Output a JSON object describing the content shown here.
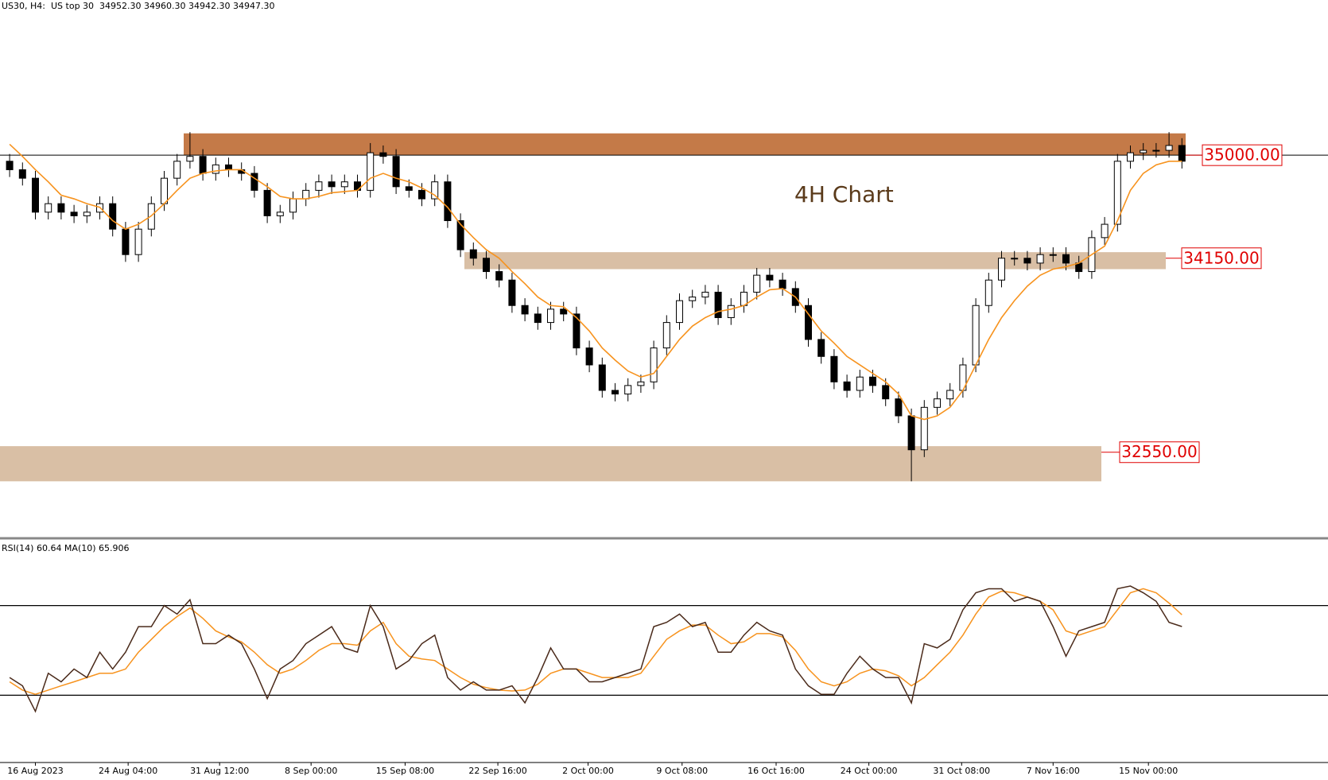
{
  "chart_data": [
    {
      "type": "candlestick",
      "title": "US30, H4:  US top 30  34952.30 34960.30 34942.30 34947.30",
      "annotation": "4H Chart",
      "ylim": [
        31840,
        36280
      ],
      "ohlc": [
        [
          34950,
          35010,
          34820,
          34880
        ],
        [
          34880,
          34940,
          34750,
          34810
        ],
        [
          34810,
          34870,
          34470,
          34530
        ],
        [
          34530,
          34660,
          34470,
          34600
        ],
        [
          34600,
          34660,
          34470,
          34530
        ],
        [
          34530,
          34590,
          34440,
          34500
        ],
        [
          34500,
          34590,
          34440,
          34530
        ],
        [
          34530,
          34660,
          34470,
          34600
        ],
        [
          34600,
          34660,
          34330,
          34390
        ],
        [
          34390,
          34450,
          34120,
          34180
        ],
        [
          34180,
          34450,
          34120,
          34390
        ],
        [
          34390,
          34660,
          34330,
          34600
        ],
        [
          34600,
          34870,
          34540,
          34810
        ],
        [
          34810,
          35010,
          34750,
          34950
        ],
        [
          34950,
          35190,
          34890,
          34990
        ],
        [
          34990,
          35050,
          34790,
          34850
        ],
        [
          34850,
          34980,
          34790,
          34920
        ],
        [
          34920,
          34980,
          34820,
          34880
        ],
        [
          34880,
          34940,
          34790,
          34850
        ],
        [
          34850,
          34910,
          34650,
          34710
        ],
        [
          34710,
          34770,
          34440,
          34500
        ],
        [
          34500,
          34590,
          34440,
          34530
        ],
        [
          34530,
          34700,
          34470,
          34640
        ],
        [
          34640,
          34770,
          34580,
          34710
        ],
        [
          34710,
          34840,
          34650,
          34780
        ],
        [
          34780,
          34840,
          34680,
          34740
        ],
        [
          34740,
          34840,
          34680,
          34780
        ],
        [
          34780,
          34840,
          34650,
          34710
        ],
        [
          34710,
          35100,
          34650,
          35020
        ],
        [
          35020,
          35080,
          34930,
          34990
        ],
        [
          34990,
          35050,
          34680,
          34740
        ],
        [
          34740,
          34800,
          34650,
          34710
        ],
        [
          34710,
          34770,
          34580,
          34640
        ],
        [
          34640,
          34840,
          34580,
          34780
        ],
        [
          34780,
          34840,
          34400,
          34460
        ],
        [
          34460,
          34520,
          34160,
          34220
        ],
        [
          34220,
          34280,
          34090,
          34150
        ],
        [
          34150,
          34210,
          33980,
          34040
        ],
        [
          34040,
          34100,
          33910,
          33970
        ],
        [
          33970,
          34030,
          33700,
          33760
        ],
        [
          33760,
          33820,
          33630,
          33690
        ],
        [
          33690,
          33750,
          33560,
          33620
        ],
        [
          33620,
          33790,
          33560,
          33730
        ],
        [
          33730,
          33790,
          33630,
          33690
        ],
        [
          33690,
          33750,
          33350,
          33410
        ],
        [
          33410,
          33470,
          33210,
          33270
        ],
        [
          33270,
          33330,
          33000,
          33060
        ],
        [
          33060,
          33120,
          32970,
          33030
        ],
        [
          33030,
          33160,
          32970,
          33100
        ],
        [
          33100,
          33190,
          33040,
          33130
        ],
        [
          33130,
          33470,
          33070,
          33410
        ],
        [
          33410,
          33680,
          33350,
          33620
        ],
        [
          33620,
          33860,
          33560,
          33800
        ],
        [
          33800,
          33890,
          33740,
          33830
        ],
        [
          33830,
          33930,
          33770,
          33870
        ],
        [
          33870,
          33930,
          33600,
          33660
        ],
        [
          33660,
          33820,
          33600,
          33760
        ],
        [
          33760,
          33930,
          33700,
          33870
        ],
        [
          33870,
          34070,
          33810,
          34010
        ],
        [
          34010,
          34070,
          33910,
          33970
        ],
        [
          33970,
          34030,
          33840,
          33900
        ],
        [
          33900,
          33960,
          33700,
          33760
        ],
        [
          33760,
          33820,
          33420,
          33480
        ],
        [
          33480,
          33540,
          33280,
          33340
        ],
        [
          33340,
          33400,
          33070,
          33130
        ],
        [
          33130,
          33190,
          33000,
          33060
        ],
        [
          33060,
          33230,
          33000,
          33170
        ],
        [
          33170,
          33230,
          33040,
          33100
        ],
        [
          33100,
          33160,
          32930,
          32990
        ],
        [
          32990,
          33050,
          32790,
          32850
        ],
        [
          32850,
          32910,
          32310,
          32570
        ],
        [
          32570,
          32980,
          32510,
          32920
        ],
        [
          32920,
          33050,
          32860,
          32990
        ],
        [
          32990,
          33120,
          32930,
          33060
        ],
        [
          33060,
          33330,
          33000,
          33270
        ],
        [
          33270,
          33820,
          33210,
          33760
        ],
        [
          33760,
          34030,
          33700,
          33970
        ],
        [
          33970,
          34210,
          33910,
          34150
        ],
        [
          34150,
          34210,
          34090,
          34150
        ],
        [
          34150,
          34210,
          34050,
          34110
        ],
        [
          34110,
          34240,
          34050,
          34180
        ],
        [
          34180,
          34240,
          34120,
          34180
        ],
        [
          34180,
          34240,
          34050,
          34110
        ],
        [
          34110,
          34170,
          33980,
          34040
        ],
        [
          34040,
          34380,
          33980,
          34320
        ],
        [
          34320,
          34490,
          34260,
          34430
        ],
        [
          34430,
          35010,
          34370,
          34950
        ],
        [
          34950,
          35080,
          34890,
          35020
        ],
        [
          35020,
          35100,
          34960,
          35040
        ],
        [
          35040,
          35100,
          34980,
          35040
        ],
        [
          35040,
          35190,
          34980,
          35080
        ],
        [
          35080,
          35140,
          34890,
          34950
        ]
      ],
      "ma": {
        "color": "#f7931e",
        "values": [
          35090,
          34990,
          34880,
          34780,
          34670,
          34640,
          34600,
          34570,
          34460,
          34390,
          34430,
          34500,
          34600,
          34710,
          34810,
          34850,
          34870,
          34880,
          34880,
          34810,
          34740,
          34660,
          34640,
          34640,
          34660,
          34690,
          34700,
          34710,
          34810,
          34850,
          34810,
          34780,
          34730,
          34670,
          34570,
          34430,
          34320,
          34220,
          34150,
          34040,
          33940,
          33830,
          33760,
          33750,
          33660,
          33550,
          33410,
          33310,
          33220,
          33170,
          33200,
          33340,
          33480,
          33590,
          33660,
          33710,
          33730,
          33760,
          33830,
          33890,
          33900,
          33830,
          33690,
          33550,
          33450,
          33340,
          33270,
          33200,
          33130,
          33030,
          32850,
          32820,
          32850,
          32920,
          33060,
          33270,
          33480,
          33660,
          33800,
          33920,
          34010,
          34060,
          34080,
          34110,
          34180,
          34250,
          34460,
          34710,
          34850,
          34920,
          34950,
          34950
        ]
      },
      "zones": [
        {
          "low": 35000,
          "high": 35180,
          "color": "#c47a48",
          "level": {
            "value": 35000,
            "label": "35000.00"
          }
        },
        {
          "low": 34060,
          "high": 34200,
          "color": "#d9bfa5",
          "level": {
            "value": 34150,
            "label": "34150.00"
          }
        },
        {
          "low": 32310,
          "high": 32600,
          "color": "#d9bfa5",
          "level": {
            "value": 32550,
            "label": "32550.00"
          }
        }
      ],
      "xticks": [
        {
          "value": 2,
          "label": "16 Aug 2023"
        },
        {
          "value": 9.2,
          "label": "24 Aug 04:00"
        },
        {
          "value": 16.3,
          "label": "31 Aug 12:00"
        },
        {
          "value": 23.4,
          "label": "8 Sep 00:00"
        },
        {
          "value": 30.7,
          "label": "15 Sep 08:00"
        },
        {
          "value": 37.9,
          "label": "22 Sep 16:00"
        },
        {
          "value": 44.9,
          "label": "2 Oct 00:00"
        },
        {
          "value": 52.2,
          "label": "9 Oct 08:00"
        },
        {
          "value": 59.5,
          "label": "16 Oct 16:00"
        },
        {
          "value": 66.7,
          "label": "24 Oct 00:00"
        },
        {
          "value": 73.9,
          "label": "31 Oct 08:00"
        },
        {
          "value": 81,
          "label": "7 Nov 16:00"
        },
        {
          "value": 88.4,
          "label": "15 Nov 00:00"
        }
      ]
    },
    {
      "type": "line",
      "title": "RSI(14) 60.64 MA(10) 65.906",
      "ylim": [
        0,
        100
      ],
      "levels": [
        70,
        30
      ],
      "series": [
        {
          "color": "#4a2a1a",
          "values": [
            37.9,
            34.2,
            22.8,
            39.8,
            36,
            41.7,
            37.9,
            49.2,
            41.7,
            49.2,
            60.6,
            60.6,
            70,
            66.2,
            72.6,
            53,
            53,
            56.8,
            53,
            41.7,
            28.5,
            41.7,
            45.5,
            53,
            56.8,
            60.6,
            51.1,
            49.2,
            70,
            60.6,
            41.7,
            45.5,
            53,
            56.8,
            37.9,
            32.3,
            36,
            32.3,
            32.3,
            34.2,
            26.6,
            37.9,
            51.1,
            41.7,
            41.7,
            36,
            36,
            37.9,
            39.8,
            41.7,
            60.6,
            62.5,
            66.2,
            60.6,
            62.5,
            49.2,
            49.2,
            56.8,
            62.5,
            58.7,
            56.8,
            41.7,
            34.2,
            30.4,
            30.4,
            39.8,
            47.4,
            41.7,
            37.9,
            37.9,
            26.6,
            53,
            51.1,
            54.9,
            68.1,
            75.7,
            77.5,
            77.5,
            71.9,
            73.8,
            71.9,
            60.6,
            47.4,
            58.7,
            60.6,
            62.5,
            77.5,
            78.7,
            75.7,
            71.9,
            62.5,
            60.64
          ]
        },
        {
          "color": "#f7931e",
          "values": [
            36,
            32.3,
            30.4,
            32.3,
            34.2,
            36,
            37.9,
            39.8,
            39.8,
            41.7,
            49.2,
            54.9,
            60.6,
            65.1,
            68.9,
            64.3,
            58.7,
            56,
            53.8,
            49.2,
            43.6,
            39.8,
            41.7,
            45.5,
            50,
            53,
            53,
            52.3,
            58.7,
            62.5,
            53,
            47.4,
            46.2,
            45.5,
            41.7,
            37.9,
            34.9,
            33.4,
            32.3,
            31.9,
            32.3,
            34.9,
            39.8,
            41.7,
            41.7,
            39.8,
            37.9,
            37.9,
            37.9,
            39.8,
            47.4,
            54.9,
            58.7,
            61.3,
            61.3,
            56.8,
            53,
            53.8,
            57.5,
            57.5,
            56,
            50,
            41.7,
            36,
            34.2,
            36,
            39.8,
            41.7,
            40.9,
            38.7,
            34.2,
            37.9,
            43.6,
            49.2,
            56.8,
            66.2,
            73.8,
            76.4,
            75.7,
            73.8,
            71.9,
            68.1,
            58.7,
            56.8,
            58.7,
            60.6,
            68.1,
            75.7,
            77.5,
            75.7,
            71.1,
            65.906
          ]
        }
      ]
    }
  ]
}
